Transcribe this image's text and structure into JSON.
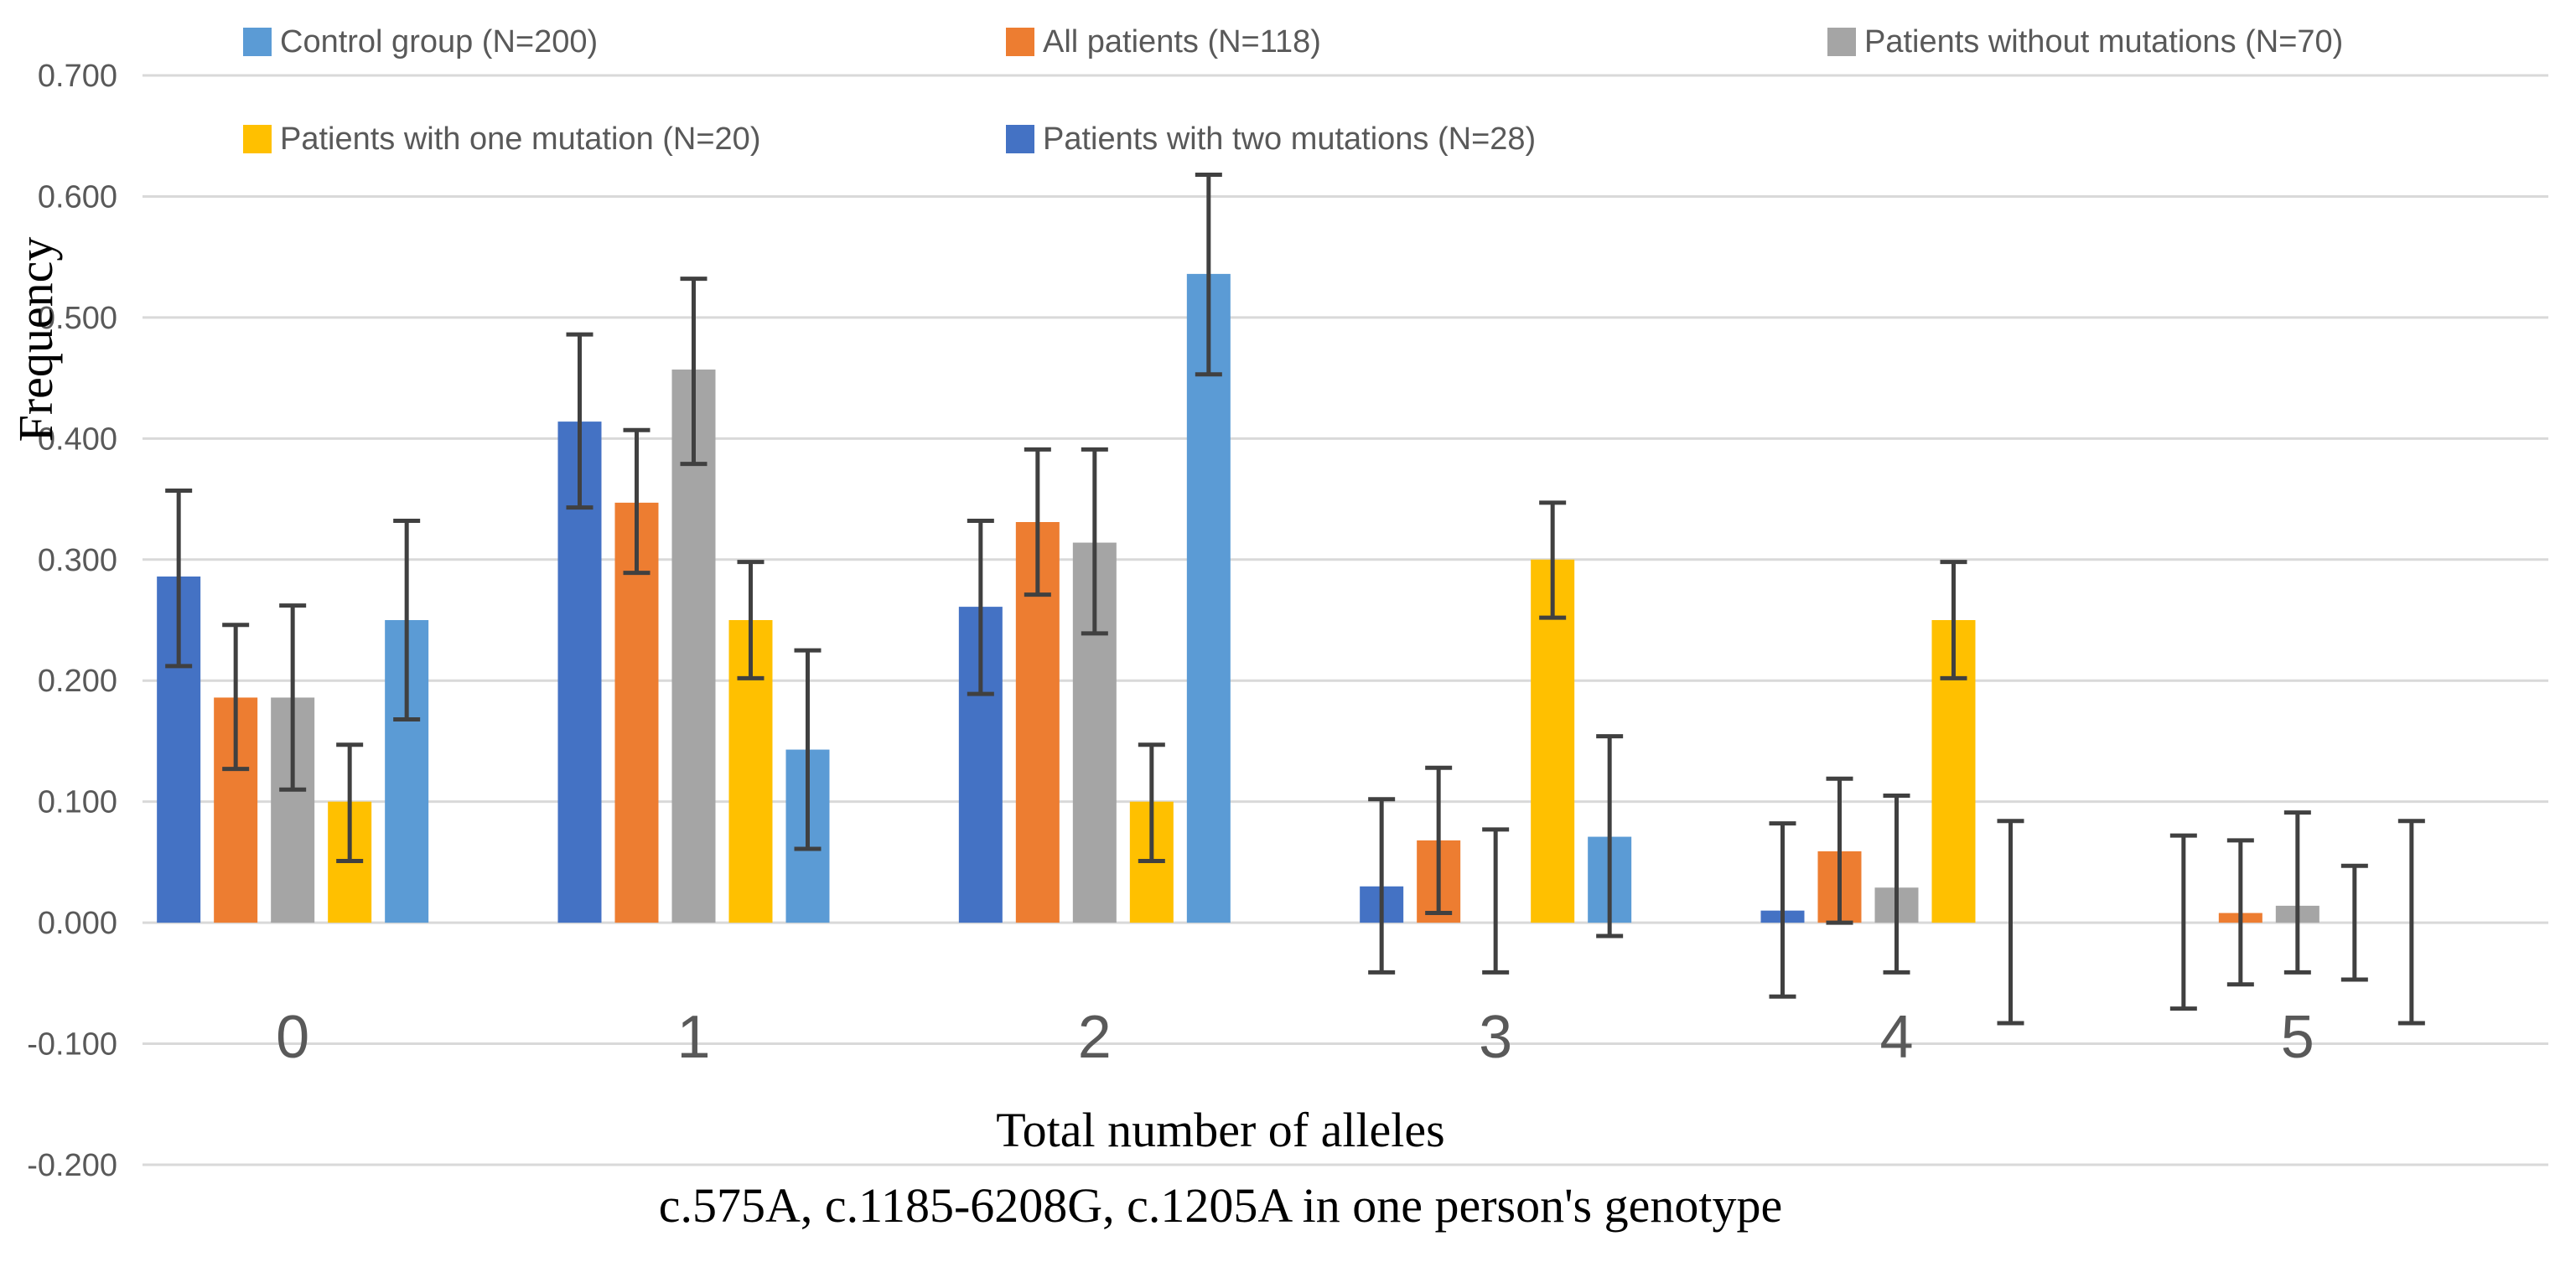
{
  "chart_data": {
    "type": "bar",
    "title": "",
    "xlabel": "Total number of alleles",
    "xlabel_line2": "c.575A, c.1185-6208G, c.1205A in one person's genotype",
    "ylabel": "Frequency",
    "ylim": [
      -0.2,
      0.7
    ],
    "yticks": [
      -0.2,
      -0.1,
      0.0,
      0.1,
      0.2,
      0.3,
      0.4,
      0.5,
      0.6,
      0.7
    ],
    "ytick_labels": [
      "-0.200",
      "-0.100",
      "0.000",
      "0.100",
      "0.200",
      "0.300",
      "0.400",
      "0.500",
      "0.600",
      "0.700"
    ],
    "grid": true,
    "legend_position": "top",
    "categories": [
      "0",
      "1",
      "2",
      "3",
      "4",
      "5"
    ],
    "series": [
      {
        "name": "Patients with two mutations (N=28)",
        "color": "#4472C4",
        "values": [
          0.286,
          0.414,
          0.261,
          0.03,
          0.01,
          0.0
        ],
        "err_low": [
          0.212,
          0.343,
          0.189,
          -0.041,
          -0.061,
          -0.071
        ],
        "err_high": [
          0.357,
          0.486,
          0.332,
          0.102,
          0.082,
          0.072
        ]
      },
      {
        "name": "All patients (N=118)",
        "color": "#ED7D31",
        "values": [
          0.186,
          0.347,
          0.331,
          0.068,
          0.059,
          0.008
        ],
        "err_low": [
          0.127,
          0.289,
          0.271,
          0.008,
          0.0,
          -0.051
        ],
        "err_high": [
          0.246,
          0.407,
          0.391,
          0.128,
          0.119,
          0.068
        ]
      },
      {
        "name": "Patients without mutations (N=70)",
        "color": "#A5A5A5",
        "values": [
          0.186,
          0.457,
          0.314,
          0.0,
          0.029,
          0.014
        ],
        "err_low": [
          0.11,
          0.379,
          0.239,
          -0.041,
          -0.041,
          -0.041
        ],
        "err_high": [
          0.262,
          0.532,
          0.391,
          0.077,
          0.105,
          0.091
        ]
      },
      {
        "name": "Patients with one mutation (N=20)",
        "color": "#FFC000",
        "values": [
          0.1,
          0.25,
          0.1,
          0.3,
          0.25,
          0.0
        ],
        "err_low": [
          0.051,
          0.202,
          0.051,
          0.252,
          0.202,
          -0.047
        ],
        "err_high": [
          0.147,
          0.298,
          0.147,
          0.347,
          0.298,
          0.047
        ]
      },
      {
        "name": "Control group (N=200)",
        "color": "#5B9BD5",
        "values": [
          0.25,
          0.143,
          0.536,
          0.071,
          0.0,
          0.0
        ],
        "err_low": [
          0.168,
          0.061,
          0.453,
          -0.011,
          -0.083,
          -0.083
        ],
        "err_high": [
          0.332,
          0.225,
          0.618,
          0.154,
          0.084,
          0.084
        ]
      }
    ],
    "legend": [
      {
        "label": "Control group (N=200)",
        "color": "#5B9BD5"
      },
      {
        "label": "All patients (N=118)",
        "color": "#ED7D31"
      },
      {
        "label": "Patients without mutations (N=70)",
        "color": "#A5A5A5"
      },
      {
        "label": "Patients with one mutation (N=20)",
        "color": "#FFC000"
      },
      {
        "label": "Patients with two mutations (N=28)",
        "color": "#4472C4"
      }
    ]
  },
  "colors": {
    "gridline": "#D9D9D9",
    "errorbar": "#404040"
  }
}
